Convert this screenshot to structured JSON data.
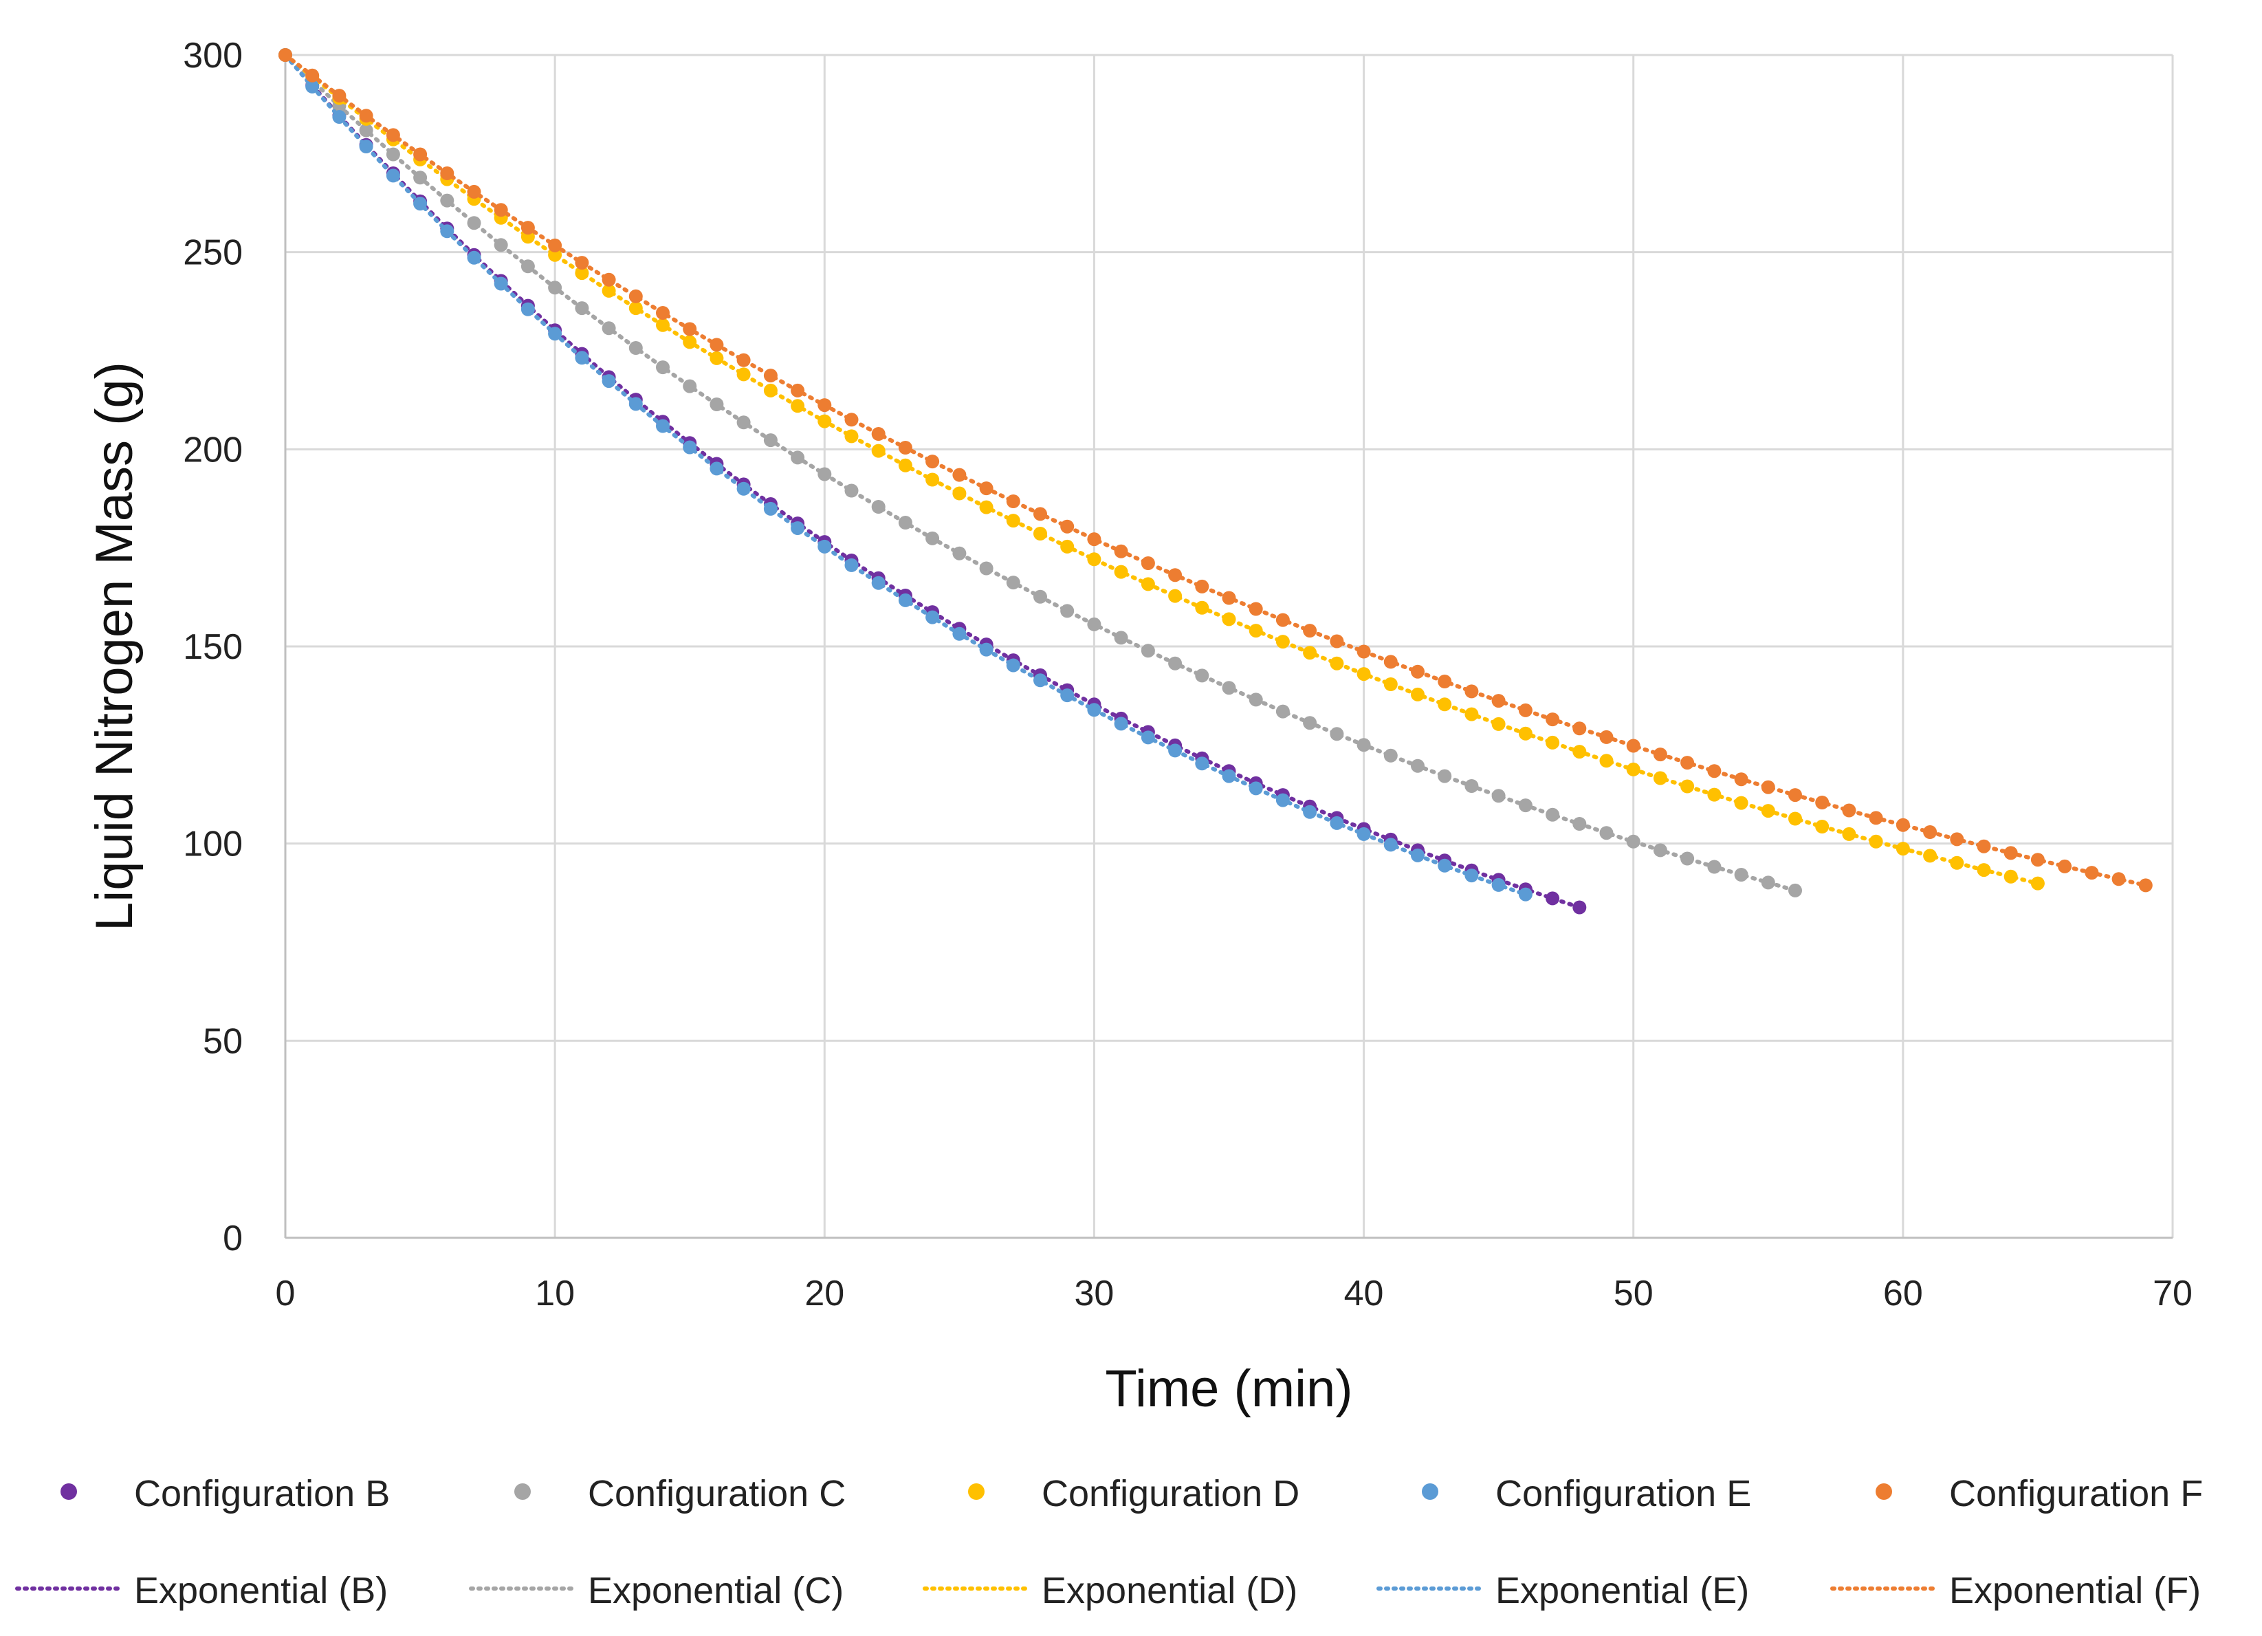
{
  "chart_data": {
    "type": "scatter",
    "title": "",
    "xlabel": "Time (min)",
    "ylabel": "Liquid Nitrogen Mass (g)",
    "xlim": [
      0,
      70
    ],
    "ylim": [
      0,
      300
    ],
    "xticks": [
      0,
      10,
      20,
      30,
      40,
      50,
      60,
      70
    ],
    "yticks": [
      0,
      50,
      100,
      150,
      200,
      250,
      300
    ],
    "grid": true,
    "legend_position": "bottom",
    "series": [
      {
        "name": "Configuration B",
        "trend_name": "Exponential (B)",
        "color": "#7030a0",
        "x": [
          0,
          1,
          2,
          3,
          4,
          5,
          6,
          7,
          8,
          9,
          10,
          11,
          12,
          13,
          14,
          15,
          16,
          17,
          18,
          19,
          20,
          21,
          22,
          23,
          24,
          25,
          26,
          27,
          28,
          29,
          30,
          31,
          32,
          33,
          34,
          35,
          36,
          37,
          38,
          39,
          40,
          41,
          42,
          43,
          44,
          45,
          46,
          47,
          48
        ],
        "y": [
          300,
          292.3,
          284.6,
          277.2,
          270.0,
          262.9,
          256.0,
          249.3,
          242.7,
          236.4,
          230.2,
          224.2,
          218.3,
          212.6,
          207.0,
          201.6,
          196.3,
          191.1,
          186.1,
          181.2,
          176.5,
          171.8,
          167.3,
          162.9,
          158.7,
          154.5,
          150.5,
          146.5,
          142.7,
          138.9,
          135.3,
          131.7,
          128.3,
          124.9,
          121.6,
          118.4,
          115.3,
          112.3,
          109.4,
          106.5,
          103.7,
          101.0,
          98.3,
          95.7,
          93.2,
          90.8,
          88.4,
          86.1,
          83.8
        ]
      },
      {
        "name": "Configuration C",
        "trend_name": "Exponential (C)",
        "color": "#a5a5a5",
        "x": [
          0,
          1,
          2,
          3,
          4,
          5,
          6,
          7,
          8,
          9,
          10,
          11,
          12,
          13,
          14,
          15,
          16,
          17,
          18,
          19,
          20,
          21,
          22,
          23,
          24,
          25,
          26,
          27,
          28,
          29,
          30,
          31,
          32,
          33,
          34,
          35,
          36,
          37,
          38,
          39,
          40,
          41,
          42,
          43,
          44,
          45,
          46,
          47,
          48,
          49,
          50,
          51,
          52,
          53,
          54,
          55,
          56
        ],
        "y": [
          300,
          293.5,
          287.1,
          280.9,
          274.8,
          268.9,
          263.1,
          257.4,
          251.8,
          246.4,
          241.0,
          235.8,
          230.7,
          225.7,
          220.8,
          216.0,
          211.4,
          206.8,
          202.3,
          197.9,
          193.7,
          189.5,
          185.4,
          181.4,
          177.4,
          173.6,
          169.8,
          166.2,
          162.6,
          159.0,
          155.6,
          152.2,
          148.9,
          145.7,
          142.6,
          139.5,
          136.5,
          133.5,
          130.6,
          127.8,
          125.0,
          122.3,
          119.7,
          117.1,
          114.6,
          112.1,
          109.7,
          107.3,
          105.0,
          102.7,
          100.5,
          98.3,
          96.2,
          94.1,
          92.1,
          90.1,
          88.1
        ]
      },
      {
        "name": "Configuration D",
        "trend_name": "Exponential (D)",
        "color": "#ffc000",
        "x": [
          0,
          1,
          2,
          3,
          4,
          5,
          6,
          7,
          8,
          9,
          10,
          11,
          12,
          13,
          14,
          15,
          16,
          17,
          18,
          19,
          20,
          21,
          22,
          23,
          24,
          25,
          26,
          27,
          28,
          29,
          30,
          31,
          32,
          33,
          34,
          35,
          36,
          37,
          38,
          39,
          40,
          41,
          42,
          43,
          44,
          45,
          46,
          47,
          48,
          49,
          50,
          51,
          52,
          53,
          54,
          55,
          56,
          57,
          58,
          59,
          60,
          61,
          62,
          63,
          64,
          65
        ],
        "y": [
          300,
          294.5,
          289.1,
          283.8,
          278.6,
          273.5,
          268.5,
          263.5,
          258.7,
          253.9,
          249.3,
          244.7,
          240.2,
          235.8,
          231.5,
          227.2,
          223.1,
          219.0,
          214.9,
          211.0,
          207.1,
          203.3,
          199.6,
          195.9,
          192.3,
          188.8,
          185.3,
          181.9,
          178.6,
          175.3,
          172.1,
          168.9,
          165.8,
          162.8,
          159.8,
          156.9,
          154.0,
          151.2,
          148.4,
          145.7,
          143.0,
          140.4,
          137.8,
          135.3,
          132.8,
          130.3,
          127.9,
          125.6,
          123.3,
          121.0,
          118.8,
          116.6,
          114.5,
          112.4,
          110.3,
          108.3,
          106.3,
          104.3,
          102.4,
          100.5,
          98.7,
          96.9,
          95.1,
          93.3,
          91.6,
          89.9
        ]
      },
      {
        "name": "Configuration E",
        "trend_name": "Exponential (E)",
        "color": "#5b9bd5",
        "x": [
          0,
          1,
          2,
          3,
          4,
          5,
          6,
          7,
          8,
          9,
          10,
          11,
          12,
          13,
          14,
          15,
          16,
          17,
          18,
          19,
          20,
          21,
          22,
          23,
          24,
          25,
          26,
          27,
          28,
          29,
          30,
          31,
          32,
          33,
          34,
          35,
          36,
          37,
          38,
          39,
          40,
          41,
          42,
          43,
          44,
          45,
          46
        ],
        "y": [
          300,
          292.0,
          284.3,
          276.8,
          269.4,
          262.3,
          255.3,
          248.6,
          242.0,
          235.5,
          229.3,
          223.2,
          217.3,
          211.5,
          205.9,
          200.5,
          195.1,
          190.0,
          184.9,
          180.0,
          175.3,
          170.6,
          166.1,
          161.7,
          157.4,
          153.2,
          149.2,
          145.2,
          141.4,
          137.6,
          133.9,
          130.4,
          126.9,
          123.6,
          120.3,
          117.1,
          114.0,
          111.0,
          108.0,
          105.2,
          102.4,
          99.7,
          97.0,
          94.4,
          91.9,
          89.5,
          87.1
        ]
      },
      {
        "name": "Configuration F",
        "trend_name": "Exponential (F)",
        "color": "#ed7d31",
        "x": [
          0,
          1,
          2,
          3,
          4,
          5,
          6,
          7,
          8,
          9,
          10,
          11,
          12,
          13,
          14,
          15,
          16,
          17,
          18,
          19,
          20,
          21,
          22,
          23,
          24,
          25,
          26,
          27,
          28,
          29,
          30,
          31,
          32,
          33,
          34,
          35,
          36,
          37,
          38,
          39,
          40,
          41,
          42,
          43,
          44,
          45,
          46,
          47,
          48,
          49,
          50,
          51,
          52,
          53,
          54,
          55,
          56,
          57,
          58,
          59,
          60,
          61,
          62,
          63,
          64,
          65,
          66,
          67,
          68,
          69
        ],
        "y": [
          300,
          294.8,
          289.7,
          284.6,
          279.7,
          274.8,
          270.0,
          265.3,
          260.7,
          256.2,
          251.7,
          247.3,
          243.0,
          238.8,
          234.6,
          230.5,
          226.5,
          222.6,
          218.7,
          214.9,
          211.2,
          207.5,
          203.9,
          200.4,
          196.9,
          193.5,
          190.1,
          186.8,
          183.6,
          180.4,
          177.2,
          174.1,
          171.1,
          168.1,
          165.2,
          162.3,
          159.5,
          156.7,
          154.0,
          151.3,
          148.7,
          146.1,
          143.6,
          141.1,
          138.6,
          136.2,
          133.8,
          131.5,
          129.2,
          127.0,
          124.8,
          122.6,
          120.5,
          118.4,
          116.3,
          114.3,
          112.3,
          110.4,
          108.4,
          106.5,
          104.7,
          102.9,
          101.1,
          99.3,
          97.6,
          95.9,
          94.2,
          92.6,
          91.0,
          89.4
        ]
      }
    ]
  }
}
